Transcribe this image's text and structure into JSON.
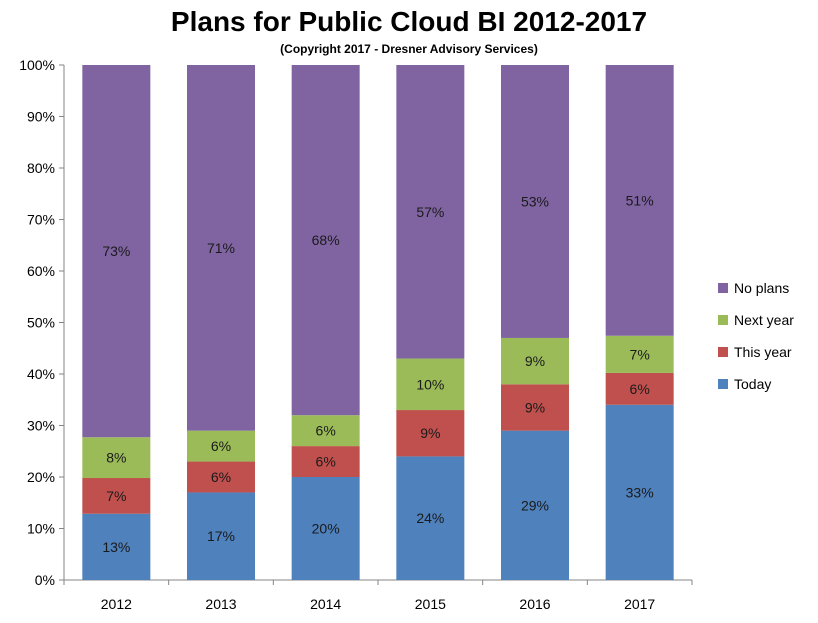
{
  "chart_data": {
    "type": "bar",
    "stacked": true,
    "percent": true,
    "title": "Plans for Public Cloud BI 2012-2017",
    "subtitle": "(Copyright 2017 - Dresner Advisory Services)",
    "categories": [
      "2012",
      "2013",
      "2014",
      "2015",
      "2016",
      "2017"
    ],
    "y_ticks": [
      "0%",
      "10%",
      "20%",
      "30%",
      "40%",
      "50%",
      "60%",
      "70%",
      "80%",
      "90%",
      "100%"
    ],
    "ylim": [
      0,
      100
    ],
    "legend_position": "right",
    "series": [
      {
        "name": "Today",
        "color": "#4f81bd",
        "values": [
          13,
          17,
          20,
          24,
          29,
          33
        ],
        "labels": [
          "13%",
          "17%",
          "20%",
          "24%",
          "29%",
          "33%"
        ]
      },
      {
        "name": "This year",
        "color": "#c0504d",
        "values": [
          7,
          6,
          6,
          9,
          9,
          6
        ],
        "labels": [
          "7%",
          "6%",
          "6%",
          "9%",
          "9%",
          "6%"
        ]
      },
      {
        "name": "Next year",
        "color": "#9bbb59",
        "values": [
          8,
          6,
          6,
          10,
          9,
          7
        ],
        "labels": [
          "8%",
          "6%",
          "6%",
          "10%",
          "9%",
          "7%"
        ]
      },
      {
        "name": "No plans",
        "color": "#8064a2",
        "values": [
          73,
          71,
          68,
          57,
          53,
          51
        ],
        "labels": [
          "73%",
          "71%",
          "68%",
          "57%",
          "53%",
          "51%"
        ]
      }
    ]
  }
}
